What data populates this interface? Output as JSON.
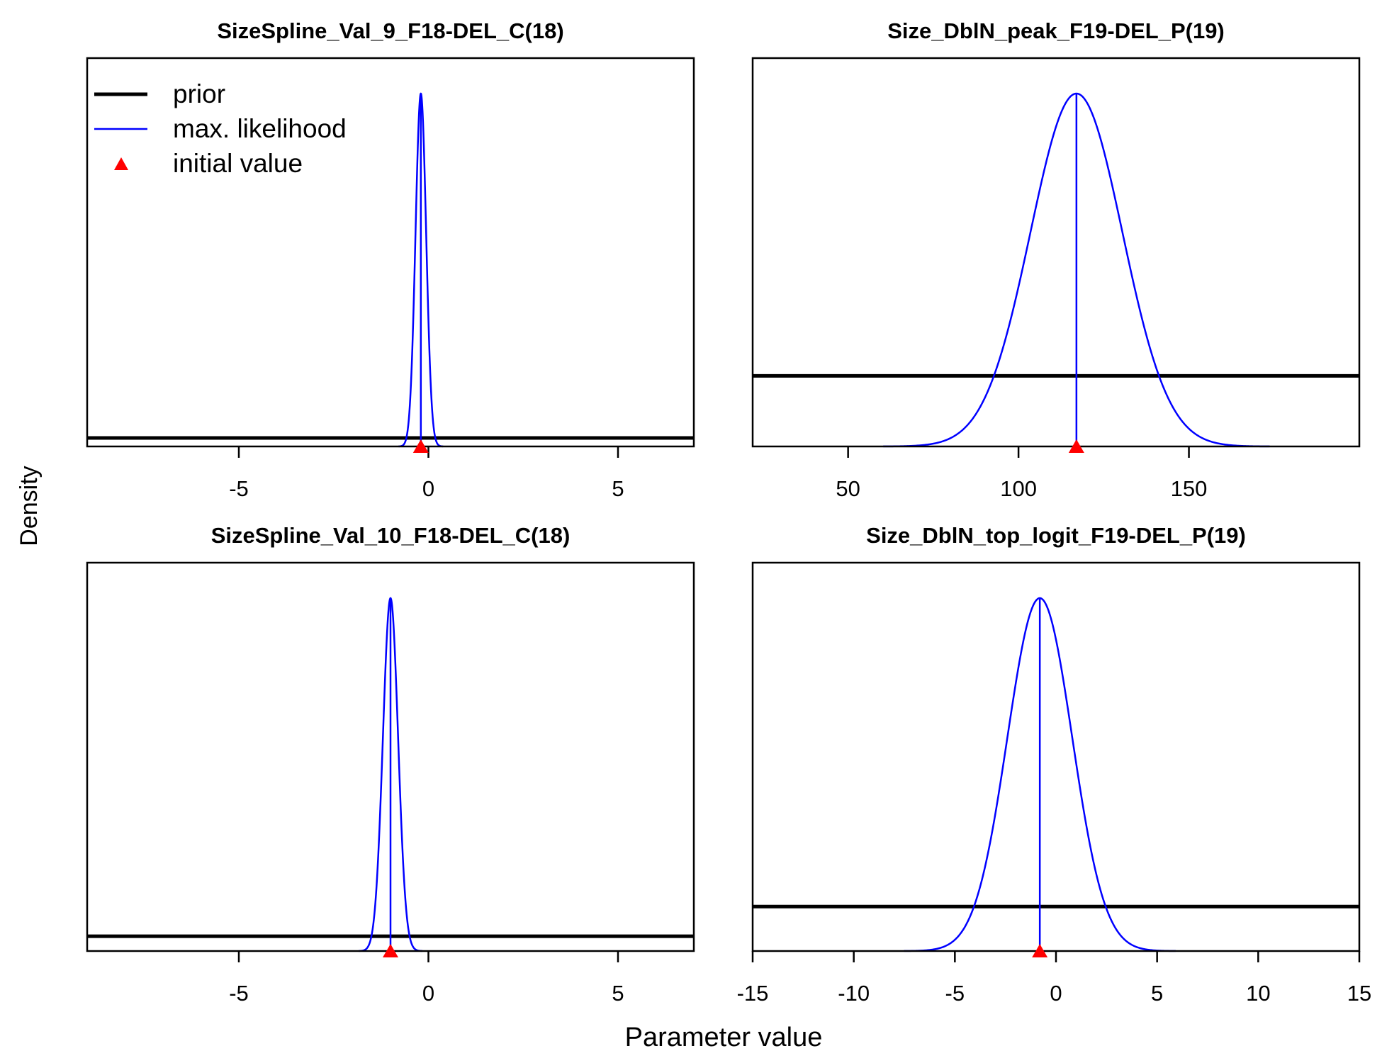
{
  "figure": {
    "ylabel": "Density",
    "xlabel": "Parameter value"
  },
  "legend": {
    "placement": "top-left of first panel",
    "entries": [
      {
        "label": "prior",
        "color": "#000000",
        "style": "thick-line"
      },
      {
        "label": "max. likelihood",
        "color": "#0000ff",
        "style": "thin-line"
      },
      {
        "label": "initial value",
        "color": "#ff0000",
        "style": "triangle"
      }
    ]
  },
  "colors": {
    "prior": "#000000",
    "mle": "#0000ff",
    "initial": "#ff0000"
  },
  "chart_data": [
    {
      "type": "line",
      "title": "SizeSpline_Val_9_F18-DEL_C(18)",
      "xlim": [
        -9,
        7
      ],
      "xticks": [
        -5,
        0,
        5
      ],
      "xtick_labels": [
        "-5",
        "0",
        "5"
      ],
      "prior_level": 0.024,
      "mle": {
        "mean": -0.2,
        "sd": 0.14
      },
      "initial_value": -0.2,
      "series": [
        {
          "name": "prior",
          "shape": "flat"
        },
        {
          "name": "max. likelihood",
          "shape": "normal"
        }
      ]
    },
    {
      "type": "line",
      "title": "Size_DblN_peak_F19-DEL_P(19)",
      "xlim": [
        22,
        200
      ],
      "xticks": [
        50,
        100,
        150
      ],
      "xtick_labels": [
        "50",
        "100",
        "150"
      ],
      "prior_level": 0.2,
      "mle": {
        "mean": 117,
        "sd": 13.5
      },
      "initial_value": 117,
      "series": [
        {
          "name": "prior",
          "shape": "flat"
        },
        {
          "name": "max. likelihood",
          "shape": "normal"
        }
      ]
    },
    {
      "type": "line",
      "title": "SizeSpline_Val_10_F18-DEL_C(18)",
      "xlim": [
        -9,
        7
      ],
      "xticks": [
        -5,
        0,
        5
      ],
      "xtick_labels": [
        "-5",
        "0",
        "5"
      ],
      "prior_level": 0.042,
      "mle": {
        "mean": -1.0,
        "sd": 0.2
      },
      "initial_value": -1.0,
      "series": [
        {
          "name": "prior",
          "shape": "flat"
        },
        {
          "name": "max. likelihood",
          "shape": "normal"
        }
      ]
    },
    {
      "type": "line",
      "title": "Size_DblN_top_logit_F19-DEL_P(19)",
      "xlim": [
        -15,
        15
      ],
      "xticks": [
        -15,
        -10,
        -5,
        0,
        5,
        10,
        15
      ],
      "xtick_labels": [
        "-15",
        "-10",
        "-5",
        "0",
        "5",
        "10",
        "15"
      ],
      "prior_level": 0.126,
      "mle": {
        "mean": -0.8,
        "sd": 1.6
      },
      "initial_value": -0.8,
      "series": [
        {
          "name": "prior",
          "shape": "flat"
        },
        {
          "name": "max. likelihood",
          "shape": "normal"
        }
      ]
    }
  ]
}
